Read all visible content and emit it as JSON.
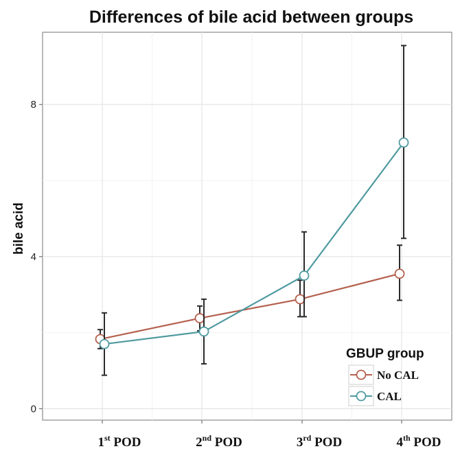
{
  "chart_data": {
    "type": "line",
    "title": "Differences of bile acid between groups",
    "xlabel": "",
    "ylabel": "bile acid",
    "categories": [
      {
        "num": "1",
        "sup": "st",
        "rest": " POD"
      },
      {
        "num": "2",
        "sup": "nd",
        "rest": " POD"
      },
      {
        "num": "3",
        "sup": "rd",
        "rest": " POD"
      },
      {
        "num": "4",
        "sup": "th",
        "rest": " POD"
      }
    ],
    "ylim": [
      -0.3,
      9.9
    ],
    "yticks": [
      0,
      4,
      8
    ],
    "grid": true,
    "legend": {
      "title": "GBUP group",
      "position": "bottom-right"
    },
    "series": [
      {
        "name": "No CAL",
        "color": "#b5604e",
        "values": [
          1.83,
          2.38,
          2.88,
          3.55
        ],
        "lower": [
          1.58,
          2.05,
          2.42,
          2.85
        ],
        "upper": [
          2.08,
          2.7,
          3.38,
          4.3
        ]
      },
      {
        "name": "CAL",
        "color": "#4f9aa0",
        "values": [
          1.7,
          2.03,
          3.5,
          7.0
        ],
        "lower": [
          0.88,
          1.18,
          2.42,
          4.48
        ],
        "upper": [
          2.52,
          2.88,
          4.65,
          9.55
        ]
      }
    ]
  }
}
